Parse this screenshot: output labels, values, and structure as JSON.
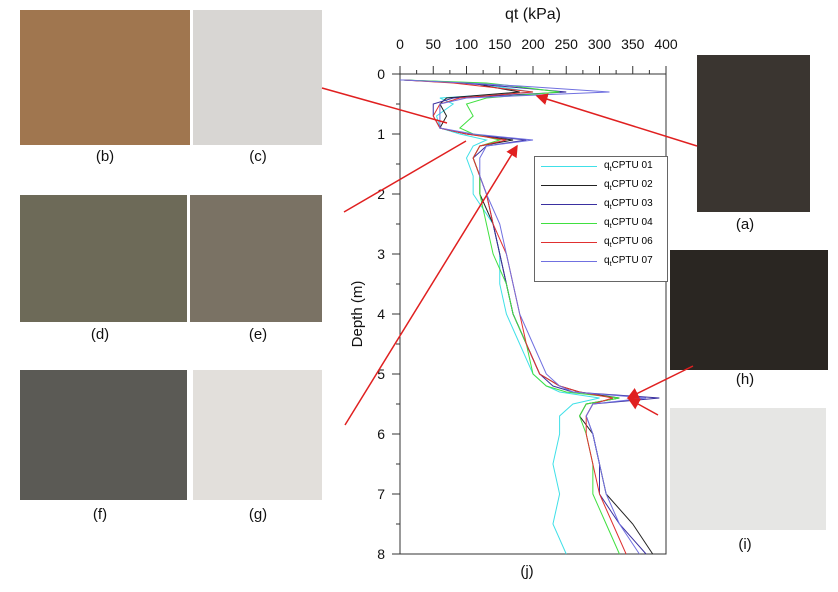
{
  "panels": [
    {
      "label": "(a)",
      "color": "#3a3530"
    },
    {
      "label": "(b)",
      "color": "#a0764f"
    },
    {
      "label": "(c)",
      "color": "#d8d6d3"
    },
    {
      "label": "(d)",
      "color": "#6d6a58"
    },
    {
      "label": "(e)",
      "color": "#7a7264"
    },
    {
      "label": "(f)",
      "color": "#5b5a55"
    },
    {
      "label": "(g)",
      "color": "#e2dfdb"
    },
    {
      "label": "(h)",
      "color": "#2a2622"
    },
    {
      "label": "(i)",
      "color": "#e6e6e4"
    }
  ],
  "chart_label": "(j)",
  "chart_data": {
    "type": "line",
    "xlabel": "qt (kPa)",
    "ylabel": "Depth (m)",
    "xlim": [
      0,
      400
    ],
    "ylim": [
      0,
      8
    ],
    "y_inverted": true,
    "x_axis_position": "top",
    "xticks": [
      "0",
      "50",
      "100",
      "150",
      "200",
      "250",
      "300",
      "350",
      "400"
    ],
    "yticks": [
      "0",
      "1",
      "2",
      "3",
      "4",
      "5",
      "6",
      "7",
      "8"
    ],
    "legend_placement": "top-right",
    "depth": [
      0.1,
      0.15,
      0.2,
      0.3,
      0.4,
      0.5,
      0.7,
      0.9,
      1.0,
      1.1,
      1.2,
      1.4,
      1.7,
      2.0,
      2.5,
      3.0,
      3.5,
      4.0,
      4.5,
      5.0,
      5.2,
      5.3,
      5.4,
      5.5,
      5.7,
      6.0,
      6.5,
      7.0,
      7.5,
      8.0
    ],
    "series": [
      {
        "name": "CPTU 01",
        "color": "#40e0e8",
        "values": [
          5,
          120,
          140,
          200,
          60,
          80,
          55,
          60,
          90,
          130,
          110,
          100,
          110,
          110,
          140,
          150,
          150,
          160,
          180,
          200,
          220,
          240,
          300,
          260,
          240,
          240,
          230,
          240,
          230,
          250
        ]
      },
      {
        "name": "CPTU 02",
        "color": "#222222",
        "values": [
          5,
          110,
          130,
          180,
          70,
          60,
          70,
          60,
          100,
          170,
          120,
          110,
          120,
          120,
          140,
          150,
          160,
          170,
          190,
          210,
          240,
          270,
          330,
          280,
          270,
          290,
          300,
          310,
          350,
          380
        ]
      },
      {
        "name": "CPTU 03",
        "color": "#3a30a0",
        "values": [
          5,
          90,
          150,
          250,
          80,
          50,
          50,
          60,
          100,
          190,
          130,
          110,
          120,
          130,
          140,
          150,
          160,
          170,
          190,
          210,
          230,
          260,
          390,
          290,
          280,
          290,
          300,
          300,
          330,
          370
        ]
      },
      {
        "name": "CPTU 04",
        "color": "#40e040",
        "values": [
          5,
          130,
          170,
          240,
          130,
          100,
          110,
          90,
          110,
          150,
          120,
          110,
          120,
          120,
          130,
          140,
          160,
          170,
          190,
          200,
          220,
          250,
          330,
          280,
          270,
          280,
          290,
          290,
          310,
          330
        ]
      },
      {
        "name": "CPTU 06",
        "color": "#e03030",
        "values": [
          5,
          80,
          120,
          200,
          90,
          60,
          50,
          60,
          100,
          160,
          120,
          110,
          120,
          130,
          140,
          160,
          170,
          180,
          190,
          210,
          240,
          270,
          320,
          290,
          280,
          280,
          290,
          300,
          320,
          340
        ]
      },
      {
        "name": "CPTU 07",
        "color": "#7070e0",
        "values": [
          5,
          100,
          180,
          315,
          100,
          60,
          60,
          60,
          110,
          200,
          130,
          120,
          120,
          130,
          150,
          160,
          170,
          180,
          200,
          220,
          240,
          260,
          370,
          290,
          280,
          290,
          300,
          310,
          330,
          360
        ]
      }
    ]
  },
  "legend_prefix": "q",
  "legend_sub": "t"
}
